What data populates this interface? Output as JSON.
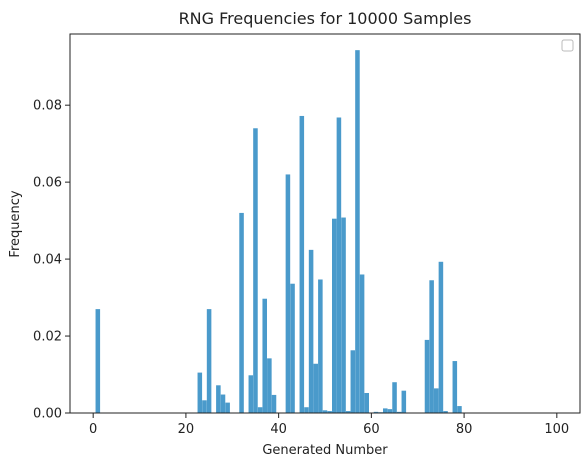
{
  "chart_data": {
    "type": "bar",
    "title": "RNG Frequencies for 10000 Samples",
    "xlabel": "Generated Number",
    "ylabel": "Frequency",
    "xlim": [
      -5,
      105
    ],
    "ylim": [
      0,
      0.0985
    ],
    "x_ticks": [
      0,
      20,
      40,
      60,
      80,
      100
    ],
    "x_tick_labels": [
      "0",
      "20",
      "40",
      "60",
      "80",
      "100"
    ],
    "y_ticks": [
      0.0,
      0.02,
      0.04,
      0.06,
      0.08
    ],
    "y_tick_labels": [
      "0.00",
      "0.02",
      "0.04",
      "0.06",
      "0.08"
    ],
    "grid": false,
    "legend": "top-right, empty",
    "bar_color": "#4a9acb",
    "x": [
      1,
      23,
      24,
      25,
      27,
      28,
      29,
      32,
      34,
      35,
      36,
      37,
      38,
      39,
      42,
      43,
      45,
      46,
      47,
      48,
      49,
      50,
      51,
      52,
      53,
      54,
      55,
      56,
      57,
      58,
      59,
      61,
      62,
      63,
      64,
      65,
      66,
      67,
      72,
      73,
      74,
      75,
      76,
      78,
      79
    ],
    "values": [
      0.027,
      0.0105,
      0.0033,
      0.027,
      0.0072,
      0.0048,
      0.0027,
      0.052,
      0.0098,
      0.074,
      0.0015,
      0.0297,
      0.0142,
      0.0047,
      0.062,
      0.0336,
      0.0772,
      0.0015,
      0.0424,
      0.0128,
      0.0347,
      0.0007,
      0.0005,
      0.0505,
      0.0768,
      0.0508,
      0.0005,
      0.0163,
      0.0943,
      0.036,
      0.0052,
      0.0003,
      0.0002,
      0.0012,
      0.001,
      0.008,
      0.0003,
      0.0058,
      0.019,
      0.0345,
      0.0064,
      0.0393,
      0.0005,
      0.0135,
      0.0018
    ]
  }
}
